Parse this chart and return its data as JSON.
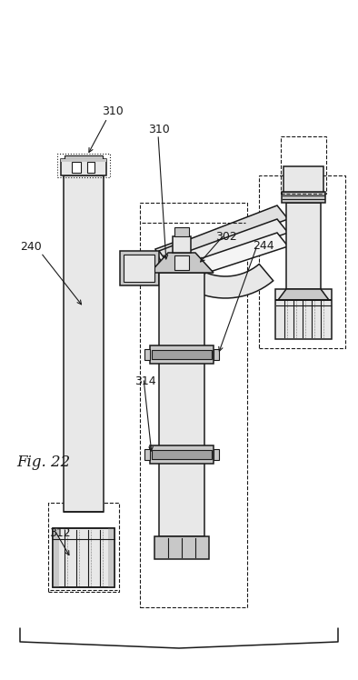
{
  "title": "Fig. 22",
  "labels": {
    "310_left": "310",
    "240": "240",
    "312": "312",
    "310_mid": "310",
    "244": "244",
    "314": "314",
    "302": "302"
  },
  "bg_color": "#ffffff",
  "line_color": "#1a1a1a",
  "shade_light": "#e8e8e8",
  "shade_mid": "#c8c8c8",
  "shade_dark": "#a0a0a0"
}
